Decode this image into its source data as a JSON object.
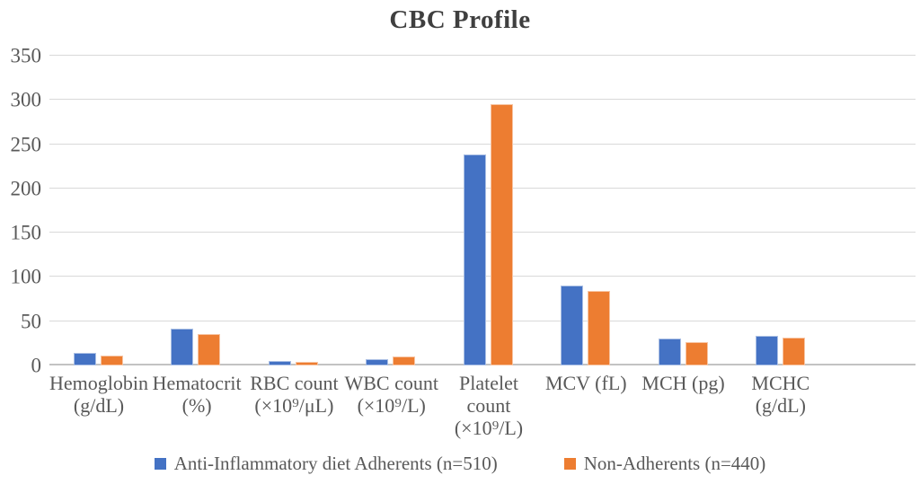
{
  "title": "CBC Profile",
  "colors": {
    "series1": "#4472C4",
    "series2": "#ED7D31",
    "gridline": "#D9D9D9",
    "axis_line": "#C3C3C3",
    "text": "#595959",
    "title_text": "#3F3F3F"
  },
  "chart_data": {
    "type": "bar",
    "title": "CBC Profile",
    "categories": [
      "Hemoglobin\n(g/dL)",
      "Hematocrit\n(%)",
      "RBC count\n(×10⁹/μL)",
      "WBC count\n(×10⁹/L)",
      "Platelet\ncount\n(×10⁹/L)",
      "MCV (fL)",
      "MCH (pg)",
      "MCHC\n(g/dL)"
    ],
    "series": [
      {
        "name": "Anti-Inflammatory diet Adherents (n=510)",
        "color": "#4472C4",
        "values": [
          14,
          42,
          5,
          7,
          238,
          90,
          30,
          34
        ]
      },
      {
        "name": "Non-Adherents (n=440)",
        "color": "#ED7D31",
        "values": [
          11.5,
          36,
          4.3,
          9.8,
          295,
          84,
          26,
          31
        ]
      }
    ],
    "xlabel": "",
    "ylabel": "",
    "ylim": [
      0,
      350
    ],
    "yticks": [
      0,
      50,
      100,
      150,
      200,
      250,
      300,
      350
    ],
    "grid": true,
    "legend_position": "bottom"
  }
}
